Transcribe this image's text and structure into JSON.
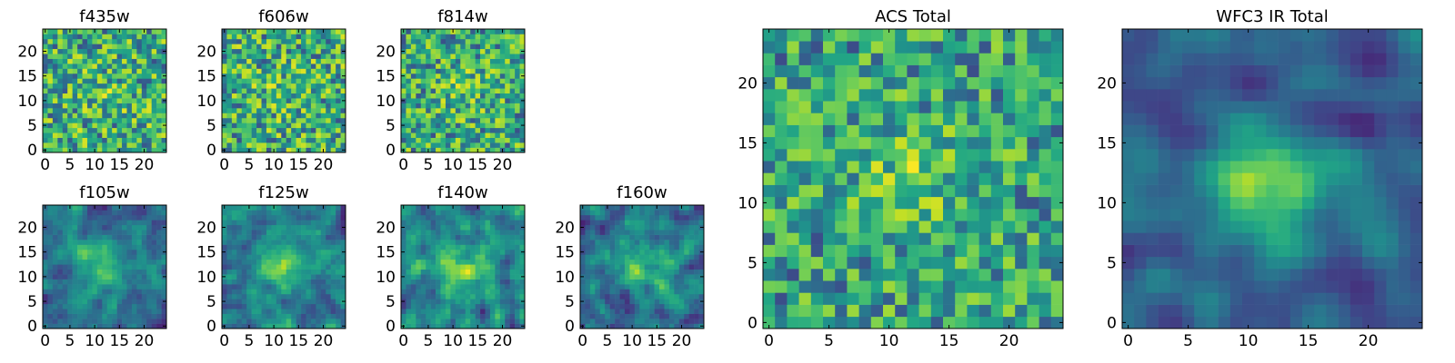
{
  "chart_data": [
    {
      "type": "heatmap",
      "title": "f435w",
      "x_ticks": [
        "0",
        "5",
        "10",
        "15",
        "20"
      ],
      "y_ticks": [
        "0",
        "5",
        "10",
        "15",
        "20"
      ],
      "xlim": [
        -0.5,
        24.5
      ],
      "ylim": [
        -0.5,
        24.5
      ],
      "grid_size": 25,
      "smoothness": 0,
      "blob": 0.08,
      "seed": 11,
      "colormap": "viridis",
      "grid": false
    },
    {
      "type": "heatmap",
      "title": "f606w",
      "x_ticks": [
        "0",
        "5",
        "10",
        "15",
        "20"
      ],
      "y_ticks": [
        "0",
        "5",
        "10",
        "15",
        "20"
      ],
      "xlim": [
        -0.5,
        24.5
      ],
      "ylim": [
        -0.5,
        24.5
      ],
      "grid_size": 25,
      "smoothness": 0,
      "blob": 0.08,
      "seed": 23,
      "colormap": "viridis",
      "grid": false
    },
    {
      "type": "heatmap",
      "title": "f814w",
      "x_ticks": [
        "0",
        "5",
        "10",
        "15",
        "20"
      ],
      "y_ticks": [
        "0",
        "5",
        "10",
        "15",
        "20"
      ],
      "xlim": [
        -0.5,
        24.5
      ],
      "ylim": [
        -0.5,
        24.5
      ],
      "grid_size": 25,
      "smoothness": 0,
      "blob": 0.12,
      "seed": 37,
      "colormap": "viridis",
      "grid": false
    },
    {
      "type": "heatmap",
      "title": "f105w",
      "x_ticks": [
        "0",
        "5",
        "10",
        "15",
        "20"
      ],
      "y_ticks": [
        "0",
        "5",
        "10",
        "15",
        "20"
      ],
      "xlim": [
        -0.5,
        24.5
      ],
      "ylim": [
        -0.5,
        24.5
      ],
      "grid_size": 25,
      "smoothness": 1,
      "blob": 0.35,
      "seed": 41,
      "colormap": "viridis",
      "grid": false
    },
    {
      "type": "heatmap",
      "title": "f125w",
      "x_ticks": [
        "0",
        "5",
        "10",
        "15",
        "20"
      ],
      "y_ticks": [
        "0",
        "5",
        "10",
        "15",
        "20"
      ],
      "xlim": [
        -0.5,
        24.5
      ],
      "ylim": [
        -0.5,
        24.5
      ],
      "grid_size": 25,
      "smoothness": 1,
      "blob": 0.3,
      "seed": 53,
      "colormap": "viridis",
      "grid": false
    },
    {
      "type": "heatmap",
      "title": "f140w",
      "x_ticks": [
        "0",
        "5",
        "10",
        "15",
        "20"
      ],
      "y_ticks": [
        "0",
        "5",
        "10",
        "15",
        "20"
      ],
      "xlim": [
        -0.5,
        24.5
      ],
      "ylim": [
        -0.5,
        24.5
      ],
      "grid_size": 25,
      "smoothness": 1,
      "blob": 0.25,
      "seed": 67,
      "colormap": "viridis",
      "grid": false
    },
    {
      "type": "heatmap",
      "title": "f160w",
      "x_ticks": [
        "0",
        "5",
        "10",
        "15",
        "20"
      ],
      "y_ticks": [
        "0",
        "5",
        "10",
        "15",
        "20"
      ],
      "xlim": [
        -0.5,
        24.5
      ],
      "ylim": [
        -0.5,
        24.5
      ],
      "grid_size": 25,
      "smoothness": 1,
      "blob": 0.35,
      "seed": 79,
      "colormap": "viridis",
      "grid": false
    },
    {
      "type": "heatmap",
      "title": "ACS Total",
      "x_ticks": [
        "0",
        "5",
        "10",
        "15",
        "20"
      ],
      "y_ticks": [
        "0",
        "5",
        "10",
        "15",
        "20"
      ],
      "xlim": [
        -0.5,
        24.5
      ],
      "ylim": [
        -0.5,
        24.5
      ],
      "grid_size": 25,
      "smoothness": 0,
      "blob": 0.2,
      "seed": 83,
      "colormap": "viridis",
      "grid": false
    },
    {
      "type": "heatmap",
      "title": "WFC3 IR Total",
      "x_ticks": [
        "0",
        "5",
        "10",
        "15",
        "20"
      ],
      "y_ticks": [
        "0",
        "5",
        "10",
        "15",
        "20"
      ],
      "xlim": [
        -0.5,
        24.5
      ],
      "ylim": [
        -0.5,
        24.5
      ],
      "grid_size": 25,
      "smoothness": 2,
      "blob": 0.5,
      "seed": 97,
      "colormap": "viridis",
      "grid": false
    }
  ]
}
